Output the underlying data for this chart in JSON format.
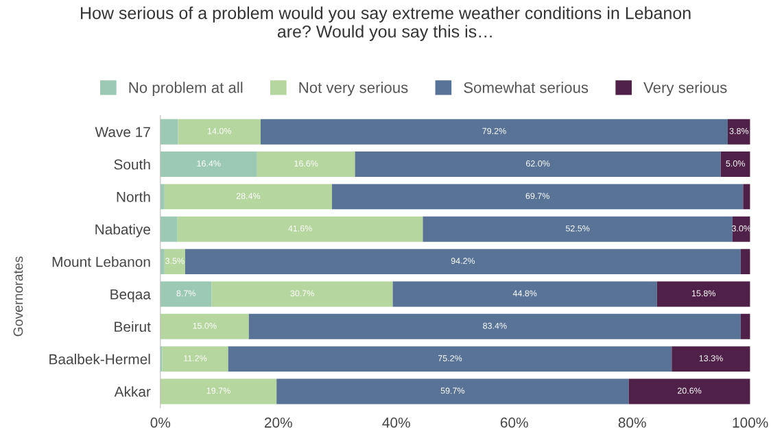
{
  "chart_data": {
    "type": "bar",
    "orientation": "horizontal",
    "stacked": true,
    "title": "How serious of a problem would you say extreme weather conditions in Lebanon\nare? Would you say this is…",
    "categories": [
      "Wave 17",
      "South",
      "North",
      "Nabatiye",
      "Mount Lebanon",
      "Beqaa",
      "Beirut",
      "Baalbek-Hermel",
      "Akkar"
    ],
    "series": [
      {
        "name": "No problem at all",
        "color": "#9cc9b4",
        "values": [
          3.0,
          16.4,
          0.7,
          2.9,
          0.7,
          8.7,
          0,
          0.3,
          0
        ],
        "value_labels": [
          null,
          "16.4%",
          null,
          null,
          null,
          "8.7%",
          null,
          null,
          null
        ]
      },
      {
        "name": "Not very serious",
        "color": "#b5d69e",
        "values": [
          14.0,
          16.6,
          28.4,
          41.6,
          3.5,
          30.7,
          15.0,
          11.2,
          19.7
        ],
        "value_labels": [
          "14.0%",
          "16.6%",
          "28.4%",
          "41.6%",
          "3.5%",
          "30.7%",
          "15.0%",
          "11.2%",
          "19.7%"
        ]
      },
      {
        "name": "Somewhat serious",
        "color": "#587396",
        "values": [
          79.2,
          62.0,
          69.7,
          52.5,
          94.2,
          44.8,
          83.4,
          75.2,
          59.7
        ],
        "value_labels": [
          "79.2%",
          "62.0%",
          "69.7%",
          "52.5%",
          "94.2%",
          "44.8%",
          "83.4%",
          "75.2%",
          "59.7%"
        ]
      },
      {
        "name": "Very serious",
        "color": "#4f2149",
        "values": [
          3.8,
          5.0,
          1.2,
          3.0,
          1.6,
          15.8,
          1.6,
          13.3,
          20.6
        ],
        "value_labels": [
          "3.8%",
          "5.0%",
          null,
          "3.0%",
          null,
          "15.8%",
          null,
          "13.3%",
          "20.6%"
        ]
      }
    ],
    "xlim": [
      0,
      100
    ],
    "xticks": [
      {
        "value": 0,
        "label": "0%"
      },
      {
        "value": 20,
        "label": "20%"
      },
      {
        "value": 40,
        "label": "40%"
      },
      {
        "value": 60,
        "label": "60%"
      },
      {
        "value": 80,
        "label": "80%"
      },
      {
        "value": 100,
        "label": "100%"
      }
    ],
    "annotations": [
      "Governorates"
    ],
    "legend": "top",
    "grid": false
  }
}
